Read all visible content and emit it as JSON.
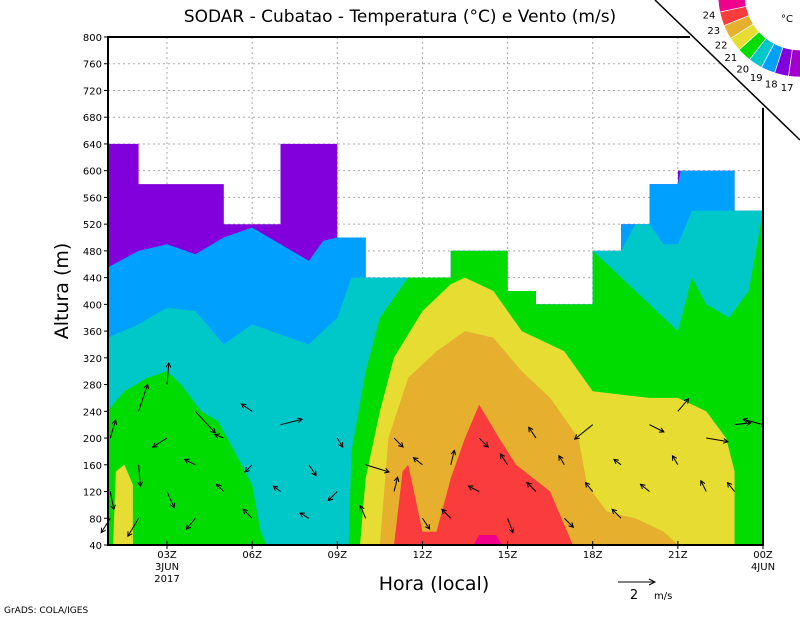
{
  "chart_data": {
    "type": "heatmap",
    "subtype": "filled-contour-with-wind-vectors",
    "title": "SODAR - Cubatao - Temperatura (°C) e Vento (m/s)",
    "xlabel": "Hora (local)",
    "ylabel": "Altura (m)",
    "xlim": [
      0.9,
      24
    ],
    "ylim": [
      40,
      800
    ],
    "grid": true,
    "yticks": [
      40,
      80,
      120,
      160,
      200,
      240,
      280,
      320,
      360,
      400,
      440,
      480,
      520,
      560,
      600,
      640,
      680,
      720,
      760,
      800
    ],
    "ytick_labels": [
      "40",
      "80",
      "120",
      "160",
      "200",
      "240",
      "280",
      "320",
      "360",
      "400",
      "440",
      "480",
      "520",
      "560",
      "600",
      "640",
      "680",
      "720",
      "760",
      "800"
    ],
    "xticks": [
      {
        "hour": 3,
        "label": "03Z",
        "sub1": "3JUN",
        "sub2": "2017"
      },
      {
        "hour": 6,
        "label": "06Z"
      },
      {
        "hour": 9,
        "label": "09Z"
      },
      {
        "hour": 12,
        "label": "12Z"
      },
      {
        "hour": 15,
        "label": "15Z"
      },
      {
        "hour": 18,
        "label": "18Z"
      },
      {
        "hour": 21,
        "label": "21Z"
      },
      {
        "hour": 24,
        "label": "00Z",
        "sub1": "4JUN"
      }
    ],
    "legend": {
      "placement": "top-right",
      "unit": "°C",
      "levels": [
        "24",
        "23",
        "22",
        "21",
        "20",
        "19",
        "18",
        "17"
      ],
      "colors": [
        "#f0008c",
        "#fa3c3c",
        "#e6af2d",
        "#e6dc32",
        "#00dc00",
        "#00c8c8",
        "#00a0ff",
        "#8200dc",
        "#a000c8"
      ]
    },
    "reference_vector": {
      "value": "2",
      "unit": "m/s"
    },
    "footer": "GrADS: COLA/IGES",
    "regions": [
      {
        "name": "below-17",
        "color": "#8200dc",
        "points": [
          [
            0.9,
            40
          ],
          [
            0.9,
            640
          ],
          [
            2,
            640
          ],
          [
            2,
            580
          ],
          [
            5,
            580
          ],
          [
            5,
            520
          ],
          [
            7,
            520
          ],
          [
            7,
            640
          ],
          [
            9,
            640
          ],
          [
            9,
            500
          ],
          [
            10,
            500
          ],
          [
            10,
            440
          ],
          [
            13,
            440
          ],
          [
            13,
            480
          ],
          [
            15,
            480
          ],
          [
            15,
            420
          ],
          [
            16,
            420
          ],
          [
            16,
            400
          ],
          [
            18,
            400
          ],
          [
            18,
            480
          ],
          [
            19,
            480
          ],
          [
            19,
            520
          ],
          [
            20,
            520
          ],
          [
            20,
            580
          ],
          [
            21,
            580
          ],
          [
            21,
            600
          ],
          [
            23,
            600
          ],
          [
            23,
            540
          ],
          [
            24,
            540
          ],
          [
            24,
            40
          ]
        ]
      },
      {
        "name": "17-18",
        "color": "#00a0ff",
        "points": [
          [
            0.9,
            40
          ],
          [
            0.9,
            455
          ],
          [
            2,
            480
          ],
          [
            3,
            490
          ],
          [
            4,
            475
          ],
          [
            5,
            500
          ],
          [
            6,
            515
          ],
          [
            7,
            490
          ],
          [
            8,
            465
          ],
          [
            8.5,
            495
          ],
          [
            9,
            500
          ],
          [
            10,
            500
          ],
          [
            10,
            440
          ],
          [
            13,
            440
          ],
          [
            13,
            480
          ],
          [
            15,
            480
          ],
          [
            15,
            420
          ],
          [
            16,
            420
          ],
          [
            16,
            400
          ],
          [
            18,
            400
          ],
          [
            18,
            480
          ],
          [
            19,
            480
          ],
          [
            19,
            520
          ],
          [
            20,
            520
          ],
          [
            20,
            580
          ],
          [
            21,
            580
          ],
          [
            21.1,
            600
          ],
          [
            23,
            600
          ],
          [
            23,
            540
          ],
          [
            24,
            540
          ],
          [
            24,
            40
          ]
        ]
      },
      {
        "name": "18-19",
        "color": "#00c8c8",
        "points": [
          [
            0.9,
            40
          ],
          [
            0.9,
            350
          ],
          [
            2,
            370
          ],
          [
            3,
            395
          ],
          [
            4,
            390
          ],
          [
            5,
            340
          ],
          [
            6,
            370
          ],
          [
            7,
            355
          ],
          [
            8,
            340
          ],
          [
            9,
            380
          ],
          [
            9.5,
            440
          ],
          [
            13,
            440
          ],
          [
            13,
            480
          ],
          [
            15,
            480
          ],
          [
            15,
            420
          ],
          [
            16,
            420
          ],
          [
            16,
            400
          ],
          [
            18,
            400
          ],
          [
            18,
            480
          ],
          [
            19,
            480
          ],
          [
            19.5,
            520
          ],
          [
            20,
            520
          ],
          [
            20.5,
            490
          ],
          [
            21,
            490
          ],
          [
            21.5,
            540
          ],
          [
            24,
            540
          ],
          [
            24,
            40
          ]
        ]
      },
      {
        "name": "19-20-left",
        "color": "#00dc00",
        "points": [
          [
            0.9,
            40
          ],
          [
            0.9,
            240
          ],
          [
            1.5,
            270
          ],
          [
            2.3,
            290
          ],
          [
            3,
            300
          ],
          [
            3.5,
            280
          ],
          [
            4.2,
            240
          ],
          [
            4.8,
            225
          ],
          [
            5.5,
            170
          ],
          [
            6,
            130
          ],
          [
            6.3,
            60
          ],
          [
            6.5,
            40
          ]
        ]
      },
      {
        "name": "19-20-right",
        "color": "#00dc00",
        "points": [
          [
            9.4,
            40
          ],
          [
            9.5,
            180
          ],
          [
            10,
            300
          ],
          [
            10.5,
            380
          ],
          [
            11.5,
            440
          ],
          [
            13,
            440
          ],
          [
            13,
            480
          ],
          [
            15,
            480
          ],
          [
            15,
            420
          ],
          [
            16,
            420
          ],
          [
            16,
            400
          ],
          [
            18,
            400
          ],
          [
            18,
            480
          ],
          [
            19,
            440
          ],
          [
            20,
            400
          ],
          [
            21,
            360
          ],
          [
            21.5,
            440
          ],
          [
            22,
            400
          ],
          [
            22.8,
            380
          ],
          [
            23.5,
            420
          ],
          [
            24,
            540
          ],
          [
            24,
            40
          ]
        ]
      },
      {
        "name": "20-21-left",
        "color": "#e6dc32",
        "points": [
          [
            1.1,
            40
          ],
          [
            1.2,
            150
          ],
          [
            1.5,
            160
          ],
          [
            1.8,
            130
          ],
          [
            1.8,
            40
          ]
        ]
      },
      {
        "name": "20-21-right",
        "color": "#e6dc32",
        "points": [
          [
            9.8,
            40
          ],
          [
            10,
            140
          ],
          [
            10.5,
            240
          ],
          [
            11,
            320
          ],
          [
            12,
            390
          ],
          [
            13,
            430
          ],
          [
            13.5,
            440
          ],
          [
            14.5,
            420
          ],
          [
            15.5,
            360
          ],
          [
            16.5,
            340
          ],
          [
            17,
            330
          ],
          [
            17.5,
            300
          ],
          [
            18,
            270
          ],
          [
            19,
            265
          ],
          [
            20,
            260
          ],
          [
            21,
            260
          ],
          [
            22,
            240
          ],
          [
            22.7,
            200
          ],
          [
            23,
            150
          ],
          [
            23,
            40
          ]
        ]
      },
      {
        "name": "21-22",
        "color": "#e6af2d",
        "points": [
          [
            10.5,
            40
          ],
          [
            10.8,
            200
          ],
          [
            11.5,
            290
          ],
          [
            12.5,
            330
          ],
          [
            13.5,
            360
          ],
          [
            14.5,
            350
          ],
          [
            15.5,
            300
          ],
          [
            16.5,
            260
          ],
          [
            17.5,
            200
          ],
          [
            17.8,
            130
          ],
          [
            18.5,
            90
          ],
          [
            19.5,
            80
          ],
          [
            20.5,
            60
          ],
          [
            21,
            40
          ]
        ]
      },
      {
        "name": "22-23",
        "color": "#fa3c3c",
        "points": [
          [
            11,
            40
          ],
          [
            11.3,
            150
          ],
          [
            11.5,
            160
          ],
          [
            11.8,
            100
          ],
          [
            12,
            60
          ],
          [
            12.5,
            60
          ],
          [
            13,
            140
          ],
          [
            13.5,
            200
          ],
          [
            14,
            250
          ],
          [
            14.7,
            200
          ],
          [
            15.3,
            160
          ],
          [
            16.5,
            120
          ],
          [
            17.3,
            40
          ]
        ]
      },
      {
        "name": "above-24",
        "color": "#f0008c",
        "points": [
          [
            13.8,
            40
          ],
          [
            14,
            55
          ],
          [
            14.6,
            55
          ],
          [
            14.8,
            40
          ]
        ]
      }
    ],
    "wind": [
      [
        1,
        200,
        0.3,
        1
      ],
      [
        1,
        120,
        0.2,
        -1
      ],
      [
        1,
        80,
        -0.5,
        -0.8
      ],
      [
        2,
        240,
        0.5,
        1.5
      ],
      [
        2,
        160,
        0.1,
        -1.2
      ],
      [
        2,
        80,
        -0.6,
        -1
      ],
      [
        3,
        280,
        0.1,
        1.2
      ],
      [
        3,
        200,
        -0.8,
        -0.5
      ],
      [
        3,
        120,
        0.4,
        -0.9
      ],
      [
        4,
        240,
        1.1,
        -1.2
      ],
      [
        4,
        160,
        -0.6,
        0.3
      ],
      [
        4,
        80,
        -0.5,
        -0.6
      ],
      [
        5,
        200,
        -0.5,
        0.2
      ],
      [
        5,
        120,
        -0.4,
        0.4
      ],
      [
        6,
        240,
        -0.6,
        0.4
      ],
      [
        6,
        160,
        -0.4,
        -0.4
      ],
      [
        6,
        80,
        -0.5,
        0.5
      ],
      [
        7,
        220,
        1.2,
        0.3
      ],
      [
        7,
        120,
        -0.4,
        0.3
      ],
      [
        8,
        160,
        0.4,
        -0.6
      ],
      [
        8,
        80,
        -0.5,
        0.3
      ],
      [
        9,
        120,
        -0.5,
        -0.5
      ],
      [
        9,
        200,
        0.3,
        -0.5
      ],
      [
        10,
        160,
        1.3,
        -0.4
      ],
      [
        10,
        80,
        -0.3,
        0.7
      ],
      [
        11,
        120,
        0.2,
        0.8
      ],
      [
        11,
        200,
        0.5,
        -0.5
      ],
      [
        12,
        160,
        -0.5,
        0.4
      ],
      [
        12,
        80,
        0.4,
        -0.6
      ],
      [
        13,
        160,
        0.2,
        0.8
      ],
      [
        13,
        80,
        -0.5,
        0.5
      ],
      [
        14,
        120,
        -0.6,
        0.3
      ],
      [
        14,
        200,
        0.5,
        -0.5
      ],
      [
        15,
        160,
        -0.4,
        0.6
      ],
      [
        15,
        80,
        0.3,
        -0.8
      ],
      [
        16,
        120,
        -0.5,
        0.5
      ],
      [
        16,
        200,
        -0.4,
        0.6
      ],
      [
        17,
        160,
        -0.3,
        0.5
      ],
      [
        17,
        80,
        0.5,
        -0.5
      ],
      [
        18,
        220,
        -1,
        -0.8
      ],
      [
        18,
        120,
        -0.4,
        0.5
      ],
      [
        19,
        160,
        -0.4,
        0.3
      ],
      [
        19,
        80,
        -0.5,
        0.5
      ],
      [
        20,
        220,
        0.8,
        -0.4
      ],
      [
        20,
        120,
        -0.5,
        0.4
      ],
      [
        21,
        240,
        0.6,
        0.7
      ],
      [
        21,
        160,
        -0.3,
        0.5
      ],
      [
        22,
        200,
        1.2,
        -0.2
      ],
      [
        22,
        120,
        -0.3,
        0.6
      ],
      [
        23,
        220,
        0.9,
        0.1
      ],
      [
        23,
        120,
        -0.4,
        0.5
      ],
      [
        24,
        220,
        -1.1,
        0.3
      ]
    ]
  }
}
